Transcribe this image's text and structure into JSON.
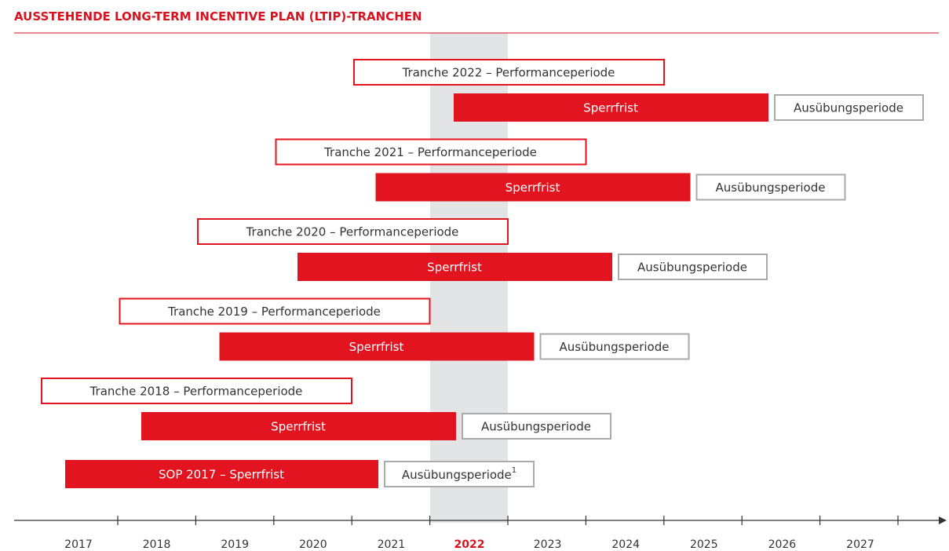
{
  "header": {
    "title": "AUSSTEHENDE LONG-TERM INCENTIVE PLAN (LTIP)-TRANCHEN"
  },
  "tranches": [
    {
      "performance": "Tranche 2022 – Performanceperiode",
      "lock": "Sperrfrist",
      "exercise": "Ausübungsperiode"
    },
    {
      "performance": "Tranche 2021 – Performanceperiode",
      "lock": "Sperrfrist",
      "exercise": "Ausübungsperiode"
    },
    {
      "performance": "Tranche 2020 – Performanceperiode",
      "lock": "Sperrfrist",
      "exercise": "Ausübungsperiode"
    },
    {
      "performance": "Tranche 2019 – Performanceperiode",
      "lock": "Sperrfrist",
      "exercise": "Ausübungsperiode"
    },
    {
      "performance": "Tranche 2018 – Performanceperiode",
      "lock": "Sperrfrist",
      "exercise": "Ausübungsperiode"
    }
  ],
  "sop": {
    "lock": "SOP 2017 – Sperrfrist",
    "exercise": "Ausübungsperiode",
    "footnote": "1"
  },
  "timeline": {
    "years": [
      "2017",
      "2018",
      "2019",
      "2020",
      "2021",
      "2022",
      "2023",
      "2024",
      "2025",
      "2026",
      "2027"
    ]
  }
}
